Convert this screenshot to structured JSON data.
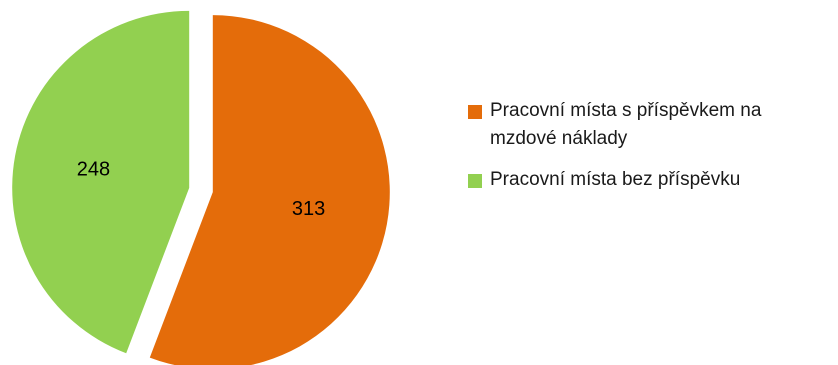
{
  "chart_data": {
    "type": "pie",
    "categories": [
      "Pracovní místa s příspěvkem na mzdové náklady",
      "Pracovní místa bez příspěvku"
    ],
    "values": [
      313,
      248
    ],
    "data_labels": [
      "313",
      "248"
    ],
    "exploded": true,
    "legend": "right",
    "colors": [
      "#E46C0A",
      "#92D050"
    ]
  }
}
